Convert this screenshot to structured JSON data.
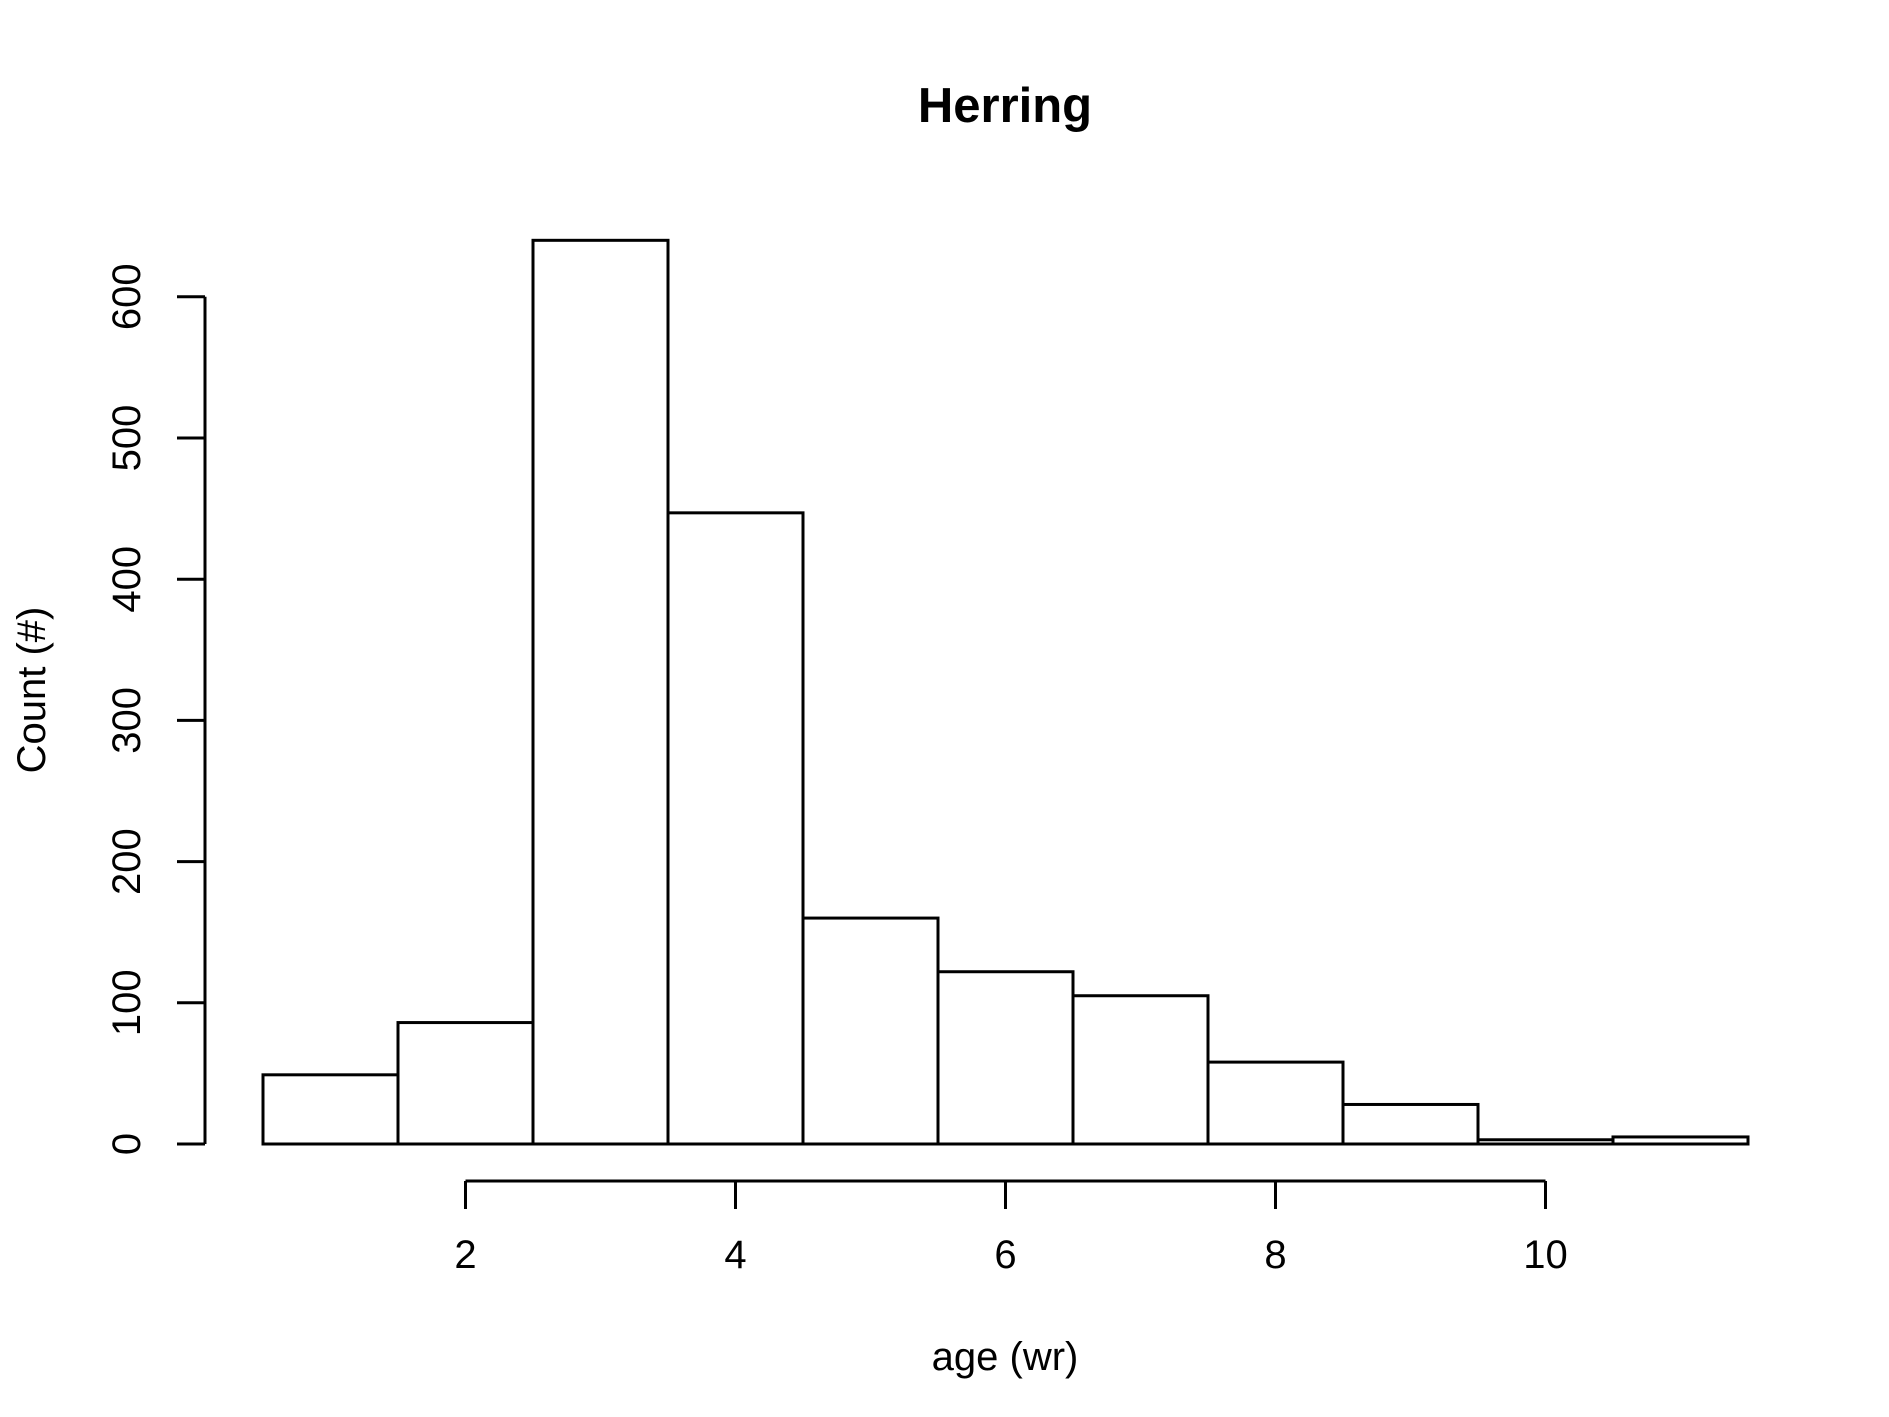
{
  "chart_data": {
    "type": "bar",
    "title": "Herring",
    "xlabel": "age (wr)",
    "ylabel": "Count (#)",
    "bin_edges": [
      0.5,
      1.5,
      2.5,
      3.5,
      4.5,
      5.5,
      6.5,
      7.5,
      8.5,
      9.5,
      10.5,
      11.5
    ],
    "values": [
      49,
      86,
      640,
      447,
      160,
      122,
      105,
      58,
      28,
      3,
      5
    ],
    "x_ticks": [
      2,
      4,
      6,
      8,
      10
    ],
    "y_ticks": [
      0,
      100,
      200,
      300,
      400,
      500,
      600
    ],
    "xlim": [
      0.5,
      11.5
    ],
    "ylim": [
      0,
      640
    ],
    "grid": false,
    "legend": "none",
    "colors": {
      "bar_fill": "#ffffff",
      "bar_stroke": "#000000"
    }
  }
}
